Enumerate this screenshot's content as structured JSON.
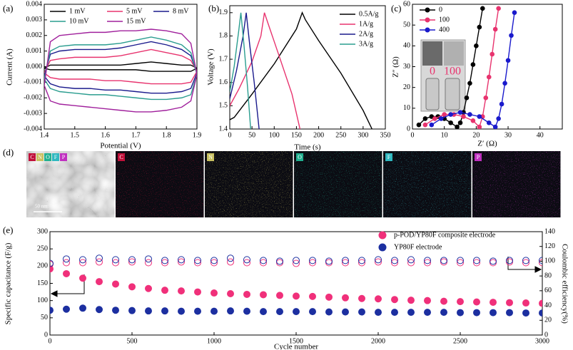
{
  "chart_data": [
    {
      "type": "line",
      "panel_label": "(a)",
      "x_label": "Potential (V)",
      "y_label": "Current (A)",
      "x": [
        1.4,
        1.42,
        1.45,
        1.5,
        1.55,
        1.6,
        1.65,
        1.7,
        1.75,
        1.8,
        1.85,
        1.88,
        1.9,
        1.9,
        1.88,
        1.85,
        1.8,
        1.75,
        1.7,
        1.65,
        1.6,
        1.55,
        1.5,
        1.45,
        1.42,
        1.4
      ],
      "xlim": [
        1.4,
        1.9
      ],
      "xticks": [
        1.4,
        1.5,
        1.6,
        1.7,
        1.8,
        1.9
      ],
      "ylim": [
        -0.004,
        0.004
      ],
      "yticks": [
        -0.004,
        -0.003,
        -0.002,
        -0.001,
        {
          "value": 0,
          "label": "0.000"
        },
        0.001,
        0.002,
        0.003,
        0.004
      ],
      "series": [
        {
          "name": "1 mV",
          "color": "#000000",
          "values": [
            -0.0001,
            0.0001,
            0.0001,
            0.0001,
            0.0001,
            0.0001,
            0.0001,
            0.0002,
            0.0003,
            0.0002,
            0.0001,
            0.0001,
            -0.0001,
            -0.0001,
            -0.0003,
            -0.0003,
            -0.0003,
            -0.0003,
            -0.0002,
            -0.0002,
            -0.0002,
            -0.0002,
            -0.0002,
            -0.0002,
            -0.0002,
            -0.0001
          ]
        },
        {
          "name": "5 mV",
          "color": "#e8336e",
          "values": [
            -0.0004,
            0.0004,
            0.0005,
            0.0006,
            0.0006,
            0.0006,
            0.0007,
            0.0009,
            0.0011,
            0.0009,
            0.0007,
            0.0004,
            -0.0003,
            -0.0003,
            -0.001,
            -0.0011,
            -0.0011,
            -0.0011,
            -0.001,
            -0.0009,
            -0.0009,
            -0.0008,
            -0.0008,
            -0.0008,
            -0.0007,
            -0.0004
          ]
        },
        {
          "name": "8 mV",
          "color": "#1a1a8c",
          "values": [
            -0.0006,
            0.0008,
            0.001,
            0.0011,
            0.0011,
            0.0011,
            0.0012,
            0.0014,
            0.0016,
            0.0014,
            0.0011,
            0.0007,
            -0.0004,
            -0.0004,
            -0.0014,
            -0.0016,
            -0.0017,
            -0.0017,
            -0.0016,
            -0.0015,
            -0.0015,
            -0.0014,
            -0.0014,
            -0.0013,
            -0.0011,
            -0.0006
          ]
        },
        {
          "name": "10 mV",
          "color": "#2a9d8f",
          "values": [
            -0.0008,
            0.001,
            0.0013,
            0.0014,
            0.0014,
            0.0014,
            0.0015,
            0.0017,
            0.0019,
            0.0017,
            0.0014,
            0.0009,
            -0.0005,
            -0.0005,
            -0.0018,
            -0.002,
            -0.0021,
            -0.0021,
            -0.002,
            -0.0019,
            -0.0018,
            -0.0018,
            -0.0017,
            -0.0016,
            -0.0014,
            -0.0008
          ]
        },
        {
          "name": "15 mV",
          "color": "#a0209c",
          "values": [
            -0.0012,
            0.0016,
            0.002,
            0.0021,
            0.0022,
            0.0022,
            0.0023,
            0.0023,
            0.0024,
            0.0023,
            0.0021,
            0.0015,
            -0.0005,
            -0.0005,
            -0.0022,
            -0.0026,
            -0.0028,
            -0.0029,
            -0.0029,
            -0.0028,
            -0.0027,
            -0.0026,
            -0.0025,
            -0.0024,
            -0.0022,
            -0.0012
          ]
        }
      ]
    },
    {
      "type": "line",
      "panel_label": "(b)",
      "x_label": "Time (s)",
      "y_label": "Voltage (V)",
      "xlim": [
        0,
        350
      ],
      "xticks": [
        0,
        50,
        100,
        150,
        200,
        250,
        300,
        350
      ],
      "ylim": [
        1.4,
        1.93
      ],
      "yticks": [
        1.4,
        1.5,
        1.6,
        1.7,
        1.8,
        1.9
      ],
      "series": [
        {
          "name": "0.5A/g",
          "color": "#000000",
          "x": [
            0,
            10,
            50,
            100,
            150,
            163,
            170,
            200,
            250,
            300,
            320
          ],
          "values": [
            1.44,
            1.45,
            1.55,
            1.68,
            1.83,
            1.9,
            1.87,
            1.78,
            1.64,
            1.48,
            1.4
          ]
        },
        {
          "name": "1A/g",
          "color": "#e8336e",
          "x": [
            0,
            20,
            50,
            70,
            78,
            85,
            110,
            140,
            158
          ],
          "values": [
            1.5,
            1.57,
            1.69,
            1.8,
            1.9,
            1.86,
            1.72,
            1.55,
            1.4
          ]
        },
        {
          "name": "2A/g",
          "color": "#1a1a8c",
          "x": [
            0,
            15,
            30,
            37,
            45,
            55,
            66
          ],
          "values": [
            1.53,
            1.65,
            1.8,
            1.9,
            1.76,
            1.6,
            1.4
          ]
        },
        {
          "name": "3A/g",
          "color": "#2a9d8f",
          "x": [
            0,
            10,
            20,
            25,
            32,
            40,
            47
          ],
          "values": [
            1.56,
            1.67,
            1.82,
            1.9,
            1.76,
            1.58,
            1.4
          ]
        }
      ]
    },
    {
      "type": "scatter",
      "panel_label": "(c)",
      "x_label": "Z′ (Ω)",
      "y_label": "Z″ (Ω)",
      "fit_line": true,
      "inset_labels": [
        "0",
        "100"
      ],
      "xlim": [
        0,
        47
      ],
      "xticks": [
        0,
        10,
        20,
        30,
        40
      ],
      "ylim": [
        0,
        60
      ],
      "yticks": [
        0,
        10,
        20,
        30,
        40,
        50,
        60
      ],
      "series": [
        {
          "name": "0",
          "color": "#000000",
          "x": [
            2,
            4,
            6,
            8,
            10,
            12,
            14,
            15,
            16,
            17,
            18,
            19,
            20,
            21,
            22
          ],
          "values": [
            2,
            5,
            6,
            6,
            5,
            3,
            1,
            3,
            8,
            15,
            22,
            31,
            40,
            49,
            58
          ]
        },
        {
          "name": "100",
          "color": "#e8336e",
          "x": [
            4,
            7,
            10,
            13,
            16,
            19,
            21,
            22,
            23,
            24,
            25,
            26,
            27
          ],
          "values": [
            2,
            5,
            7,
            7,
            6,
            4,
            1,
            6,
            15,
            25,
            36,
            48,
            58
          ]
        },
        {
          "name": "400",
          "color": "#1a1acc",
          "x": [
            6,
            9,
            12,
            15,
            18,
            21,
            24,
            26,
            27,
            28,
            29,
            30,
            31,
            32
          ],
          "values": [
            2,
            5,
            7,
            8,
            7,
            6,
            3,
            1,
            5,
            12,
            22,
            33,
            45,
            56
          ]
        }
      ]
    },
    {
      "type": "scatter",
      "panel_label": "(e)",
      "x_label": "Cycle number",
      "y_label": "Specific capacitance (F/g)",
      "y2_label": "Coulombic efficiency(%)",
      "x": [
        0,
        100,
        200,
        300,
        400,
        500,
        600,
        700,
        800,
        900,
        1000,
        1100,
        1200,
        1300,
        1400,
        1500,
        1600,
        1700,
        1800,
        1900,
        2000,
        2100,
        2200,
        2300,
        2400,
        2500,
        2600,
        2700,
        2800,
        2900,
        3000
      ],
      "xlim": [
        0,
        3000
      ],
      "xticks": [
        0,
        500,
        1000,
        1500,
        2000,
        2500,
        3000
      ],
      "ylim": [
        0,
        300
      ],
      "yticks": [
        0,
        50,
        100,
        150,
        200,
        250,
        300
      ],
      "y2lim": [
        0,
        140
      ],
      "y2ticks": [
        0,
        20,
        40,
        60,
        80,
        100,
        120,
        140
      ],
      "series": [
        {
          "name": "p-POD/YP80F composite electrode",
          "color": "#f0307a",
          "values": [
            192,
            178,
            165,
            155,
            148,
            140,
            135,
            130,
            128,
            125,
            122,
            120,
            118,
            117,
            115,
            113,
            112,
            110,
            108,
            106,
            105,
            103,
            101,
            100,
            98,
            97,
            96,
            95,
            94,
            93,
            92
          ]
        },
        {
          "name": "YP80F electrode",
          "color": "#1c2fa0",
          "values": [
            72,
            75,
            78,
            74,
            72,
            71,
            70,
            70,
            69,
            69,
            69,
            70,
            69,
            68,
            68,
            68,
            68,
            67,
            67,
            67,
            66,
            66,
            66,
            66,
            66,
            65,
            65,
            65,
            65,
            64,
            64
          ]
        },
        {
          "color": "#f0307a",
          "axis": "y2",
          "marker": "hollow",
          "values": [
            96,
            98,
            98,
            99,
            98,
            99,
            98,
            98,
            99,
            98,
            98,
            99,
            98,
            98,
            98,
            97,
            98,
            98,
            98,
            98,
            99,
            98,
            98,
            98,
            99,
            98,
            98,
            98,
            99,
            98,
            98
          ]
        },
        {
          "color": "#1c2fa0",
          "axis": "y2",
          "marker": "hollow",
          "values": [
            97,
            103,
            102,
            104,
            102,
            102,
            103,
            101,
            102,
            101,
            101,
            104,
            102,
            101,
            100,
            101,
            101,
            100,
            101,
            101,
            102,
            101,
            102,
            101,
            101,
            101,
            101,
            100,
            101,
            101,
            101
          ]
        }
      ]
    }
  ],
  "eds": {
    "panel_label": "(d)",
    "scale_bar": "50 nm",
    "labels": [
      "C",
      "N",
      "O",
      "F",
      "P"
    ],
    "colors": [
      "#c0103a",
      "#c8c060",
      "#20b090",
      "#30b8c0",
      "#c030c0"
    ]
  }
}
